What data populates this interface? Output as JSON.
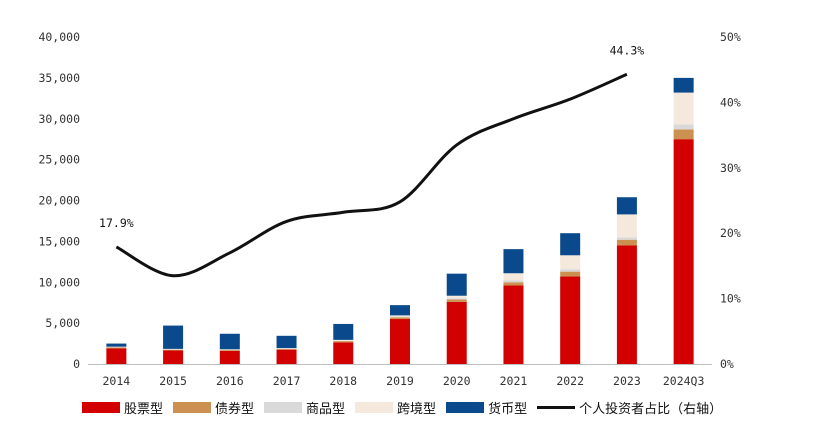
{
  "chart_data": {
    "type": "bar",
    "stacked": true,
    "categories": [
      "2014",
      "2015",
      "2016",
      "2017",
      "2018",
      "2019",
      "2020",
      "2021",
      "2022",
      "2023",
      "2024Q3"
    ],
    "series": [
      {
        "name": "股票型",
        "color": "#d20000",
        "values": [
          1900,
          1650,
          1600,
          1750,
          2650,
          5500,
          7600,
          9600,
          10700,
          14500,
          27500
        ]
      },
      {
        "name": "债券型",
        "color": "#cc9050",
        "values": [
          120,
          100,
          100,
          100,
          150,
          200,
          300,
          400,
          600,
          700,
          1200
        ]
      },
      {
        "name": "商品型",
        "color": "#d9d9d9",
        "values": [
          50,
          50,
          50,
          50,
          50,
          100,
          150,
          250,
          300,
          300,
          600
        ]
      },
      {
        "name": "跨境型",
        "color": "#f5e9dd",
        "values": [
          50,
          50,
          50,
          50,
          100,
          150,
          300,
          850,
          1700,
          2800,
          3900
        ]
      },
      {
        "name": "货币型",
        "color": "#0a4a8c",
        "values": [
          380,
          2850,
          1900,
          1500,
          1950,
          1250,
          2700,
          2950,
          2700,
          2100,
          1800
        ]
      }
    ],
    "line": {
      "name": "个人投资者占比（右轴）",
      "axis": "right",
      "color": "#111111",
      "values": [
        17.9,
        13.5,
        17.0,
        21.8,
        23.2,
        24.8,
        33.5,
        37.5,
        40.5,
        44.3,
        null
      ]
    },
    "annotations": [
      {
        "text": "17.9%",
        "category": "2014"
      },
      {
        "text": "44.3%",
        "category": "2023"
      }
    ],
    "ylim": [
      0,
      40000
    ],
    "yticks": [
      "0",
      "5,000",
      "10,000",
      "15,000",
      "20,000",
      "25,000",
      "30,000",
      "35,000",
      "40,000"
    ],
    "ytick_values": [
      0,
      5000,
      10000,
      15000,
      20000,
      25000,
      30000,
      35000,
      40000
    ],
    "y2lim": [
      0,
      50
    ],
    "y2ticks": [
      "0%",
      "10%",
      "20%",
      "30%",
      "40%",
      "50%"
    ],
    "y2tick_values": [
      0,
      10,
      20,
      30,
      40,
      50
    ],
    "legend_position": "bottom"
  }
}
